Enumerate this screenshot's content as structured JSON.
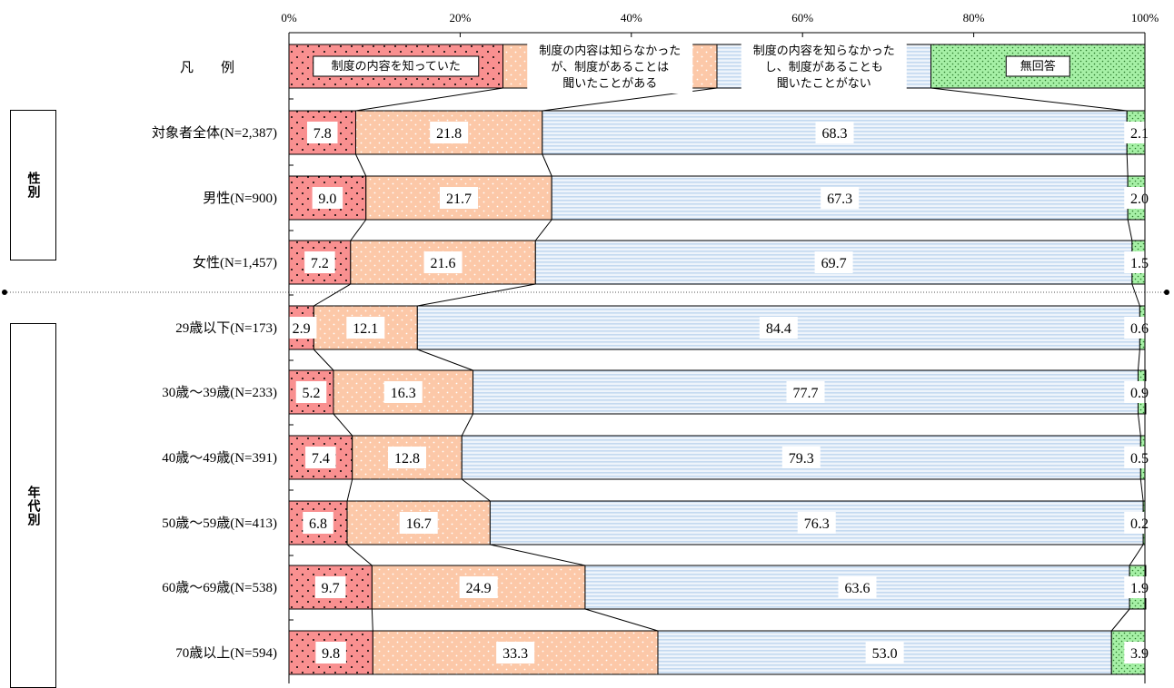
{
  "chart_data": {
    "type": "bar",
    "orientation": "horizontal",
    "stacked": "percent",
    "xlim": [
      0,
      100
    ],
    "x_ticks": [
      "0%",
      "20%",
      "40%",
      "60%",
      "80%",
      "100%"
    ],
    "legend_row_label": "凡　　例",
    "series": [
      {
        "name": "制度の内容を知っていた",
        "color": "#f99090",
        "pattern": "dots",
        "values": [
          7.8,
          9.0,
          7.2,
          2.9,
          5.2,
          7.4,
          6.8,
          9.7,
          9.8
        ]
      },
      {
        "name": "制度の内容は知らなかったが、制度があることは聞いたことがある",
        "color": "#fcc8a8",
        "pattern": "light-dots",
        "values": [
          21.8,
          21.7,
          21.6,
          12.1,
          16.3,
          12.8,
          16.7,
          24.9,
          33.3
        ]
      },
      {
        "name": "制度の内容を知らなかったし、制度があることも聞いたことがない",
        "color": "#d6e6f6",
        "pattern": "stripes",
        "values": [
          68.3,
          67.3,
          69.7,
          84.4,
          77.7,
          79.3,
          76.3,
          63.6,
          53.0
        ]
      },
      {
        "name": "無回答",
        "color": "#a6f0a6",
        "pattern": "grid-dots",
        "values": [
          2.1,
          2.0,
          1.5,
          0.6,
          0.9,
          0.5,
          0.2,
          1.9,
          3.9
        ]
      }
    ],
    "categories": [
      "対象者全体(N=2,387)",
      "男性(N=900)",
      "女性(N=1,457)",
      "29歳以下(N=173)",
      "30歳～39歳(N=233)",
      "40歳～49歳(N=391)",
      "50歳～59歳(N=413)",
      "60歳～69歳(N=538)",
      "70歳以上(N=594)"
    ],
    "legend_labels": [
      [
        "制度の内容を知っていた"
      ],
      [
        "制度の内容は知らなかった",
        "が、制度があることは",
        "聞いたことがある"
      ],
      [
        "制度の内容を知らなかった",
        "し、制度があることも",
        "聞いたことがない"
      ],
      [
        "無回答"
      ]
    ],
    "groups": [
      {
        "label": "性別",
        "rows": [
          0,
          1,
          2
        ]
      },
      {
        "label": "年代別",
        "rows": [
          3,
          4,
          5,
          6,
          7,
          8
        ]
      }
    ]
  }
}
